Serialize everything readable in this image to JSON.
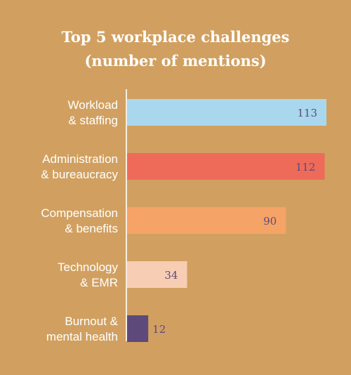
{
  "chart_data": {
    "type": "bar",
    "orientation": "horizontal",
    "title_lines": [
      "Top 5 workplace challenges",
      "(number of mentions)"
    ],
    "categories": [
      [
        "Workload",
        "& staffing"
      ],
      [
        "Administration",
        "& bureaucracy"
      ],
      [
        "Compensation",
        "& benefits"
      ],
      [
        "Technology",
        "& EMR"
      ],
      [
        "Burnout &",
        "mental health"
      ]
    ],
    "values": [
      113,
      112,
      90,
      34,
      12
    ],
    "value_labels": [
      "113",
      "112",
      "90",
      "34",
      "12"
    ],
    "bar_colors": [
      "#A9D8EE",
      "#EE6B5A",
      "#F5A366",
      "#F7CDB4",
      "#5D4A7A"
    ],
    "xlim": [
      0,
      113
    ],
    "grid": false,
    "legend": "none",
    "colors": {
      "background": "#D1A060",
      "axis": "#F7ECE0",
      "text": "#ffffff",
      "value_label": "#5D4A7A"
    }
  }
}
